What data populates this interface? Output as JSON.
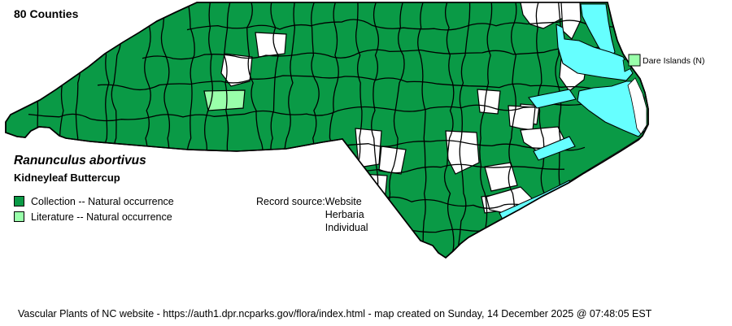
{
  "title": "80 Counties",
  "species": {
    "scientific": "Ranunculus abortivus",
    "common": "Kidneyleaf Buttercup"
  },
  "legend": {
    "items": [
      {
        "key": "collection",
        "label": "Collection -- Natural occurrence"
      },
      {
        "key": "literature",
        "label": "Literature -- Natural occurrence"
      }
    ]
  },
  "record_source": {
    "label": "Record source:",
    "values": [
      "Website",
      "Herbaria",
      "Individual"
    ]
  },
  "map": {
    "island_label": "Dare Islands (N)"
  },
  "colors": {
    "collection": "#0a9a46",
    "literature": "#99ffaa",
    "water": "#66ffff",
    "border": "#000000",
    "empty": "#ffffff"
  },
  "footer": "Vascular Plants of NC website - https://auth1.dpr.ncparks.gov/flora/index.html - map created on Sunday, 14 December 2025 @ 07:48:05 EST"
}
